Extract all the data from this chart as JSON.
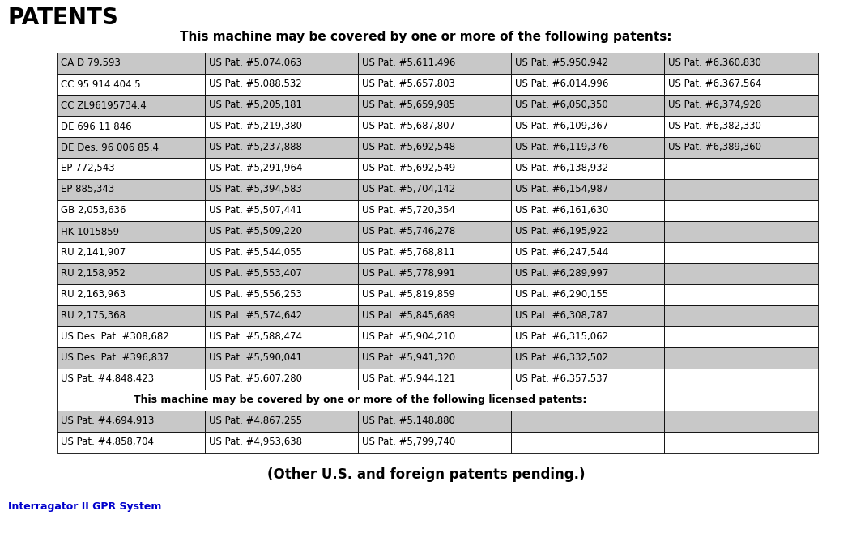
{
  "title": "PATENTS",
  "subtitle": "This machine may be covered by one or more of the following patents:",
  "footer": "(Other U.S. and foreign patents pending.)",
  "footer_label": "Interragator II GPR System",
  "table_rows": [
    [
      "CA D 79,593",
      "US Pat. #5,074,063",
      "US Pat. #5,611,496",
      "US Pat. #5,950,942",
      "US Pat. #6,360,830"
    ],
    [
      "CC 95 914 404.5",
      "US Pat. #5,088,532",
      "US Pat. #5,657,803",
      "US Pat. #6,014,996",
      "US Pat. #6,367,564"
    ],
    [
      "CC ZL96195734.4",
      "US Pat. #5,205,181",
      "US Pat. #5,659,985",
      "US Pat. #6,050,350",
      "US Pat. #6,374,928"
    ],
    [
      "DE 696 11 846",
      "US Pat. #5,219,380",
      "US Pat. #5,687,807",
      "US Pat. #6,109,367",
      "US Pat. #6,382,330"
    ],
    [
      "DE Des. 96 006 85.4",
      "US Pat. #5,237,888",
      "US Pat. #5,692,548",
      "US Pat. #6,119,376",
      "US Pat. #6,389,360"
    ],
    [
      "EP 772,543",
      "US Pat. #5,291,964",
      "US Pat. #5,692,549",
      "US Pat. #6,138,932",
      ""
    ],
    [
      "EP 885,343",
      "US Pat. #5,394,583",
      "US Pat. #5,704,142",
      "US Pat. #6,154,987",
      ""
    ],
    [
      "GB 2,053,636",
      "US Pat. #5,507,441",
      "US Pat. #5,720,354",
      "US Pat. #6,161,630",
      ""
    ],
    [
      "HK 1015859",
      "US Pat. #5,509,220",
      "US Pat. #5,746,278",
      "US Pat. #6,195,922",
      ""
    ],
    [
      "RU 2,141,907",
      "US Pat. #5,544,055",
      "US Pat. #5,768,811",
      "US Pat. #6,247,544",
      ""
    ],
    [
      "RU 2,158,952",
      "US Pat. #5,553,407",
      "US Pat. #5,778,991",
      "US Pat. #6,289,997",
      ""
    ],
    [
      "RU 2,163,963",
      "US Pat. #5,556,253",
      "US Pat. #5,819,859",
      "US Pat. #6,290,155",
      ""
    ],
    [
      "RU 2,175,368",
      "US Pat. #5,574,642",
      "US Pat. #5,845,689",
      "US Pat. #6,308,787",
      ""
    ],
    [
      "US Des. Pat. #308,682",
      "US Pat. #5,588,474",
      "US Pat. #5,904,210",
      "US Pat. #6,315,062",
      ""
    ],
    [
      "US Des. Pat. #396,837",
      "US Pat. #5,590,041",
      "US Pat. #5,941,320",
      "US Pat. #6,332,502",
      ""
    ],
    [
      "US Pat. #4,848,423",
      "US Pat. #5,607,280",
      "US Pat. #5,944,121",
      "US Pat. #6,357,537",
      ""
    ]
  ],
  "licensed_header": "This machine may be covered by one or more of the following licensed patents:",
  "licensed_rows": [
    [
      "US Pat. #4,694,913",
      "US Pat. #4,867,255",
      "US Pat. #5,148,880",
      "",
      ""
    ],
    [
      "US Pat. #4,858,704",
      "US Pat. #4,953,638",
      "US Pat. #5,799,740",
      "",
      ""
    ]
  ],
  "bg_color_odd": "#c8c8c8",
  "bg_color_even": "#ffffff",
  "border_color": "#000000",
  "text_color": "#000000",
  "title_color": "#000000",
  "footer_label_color": "#0000cc"
}
